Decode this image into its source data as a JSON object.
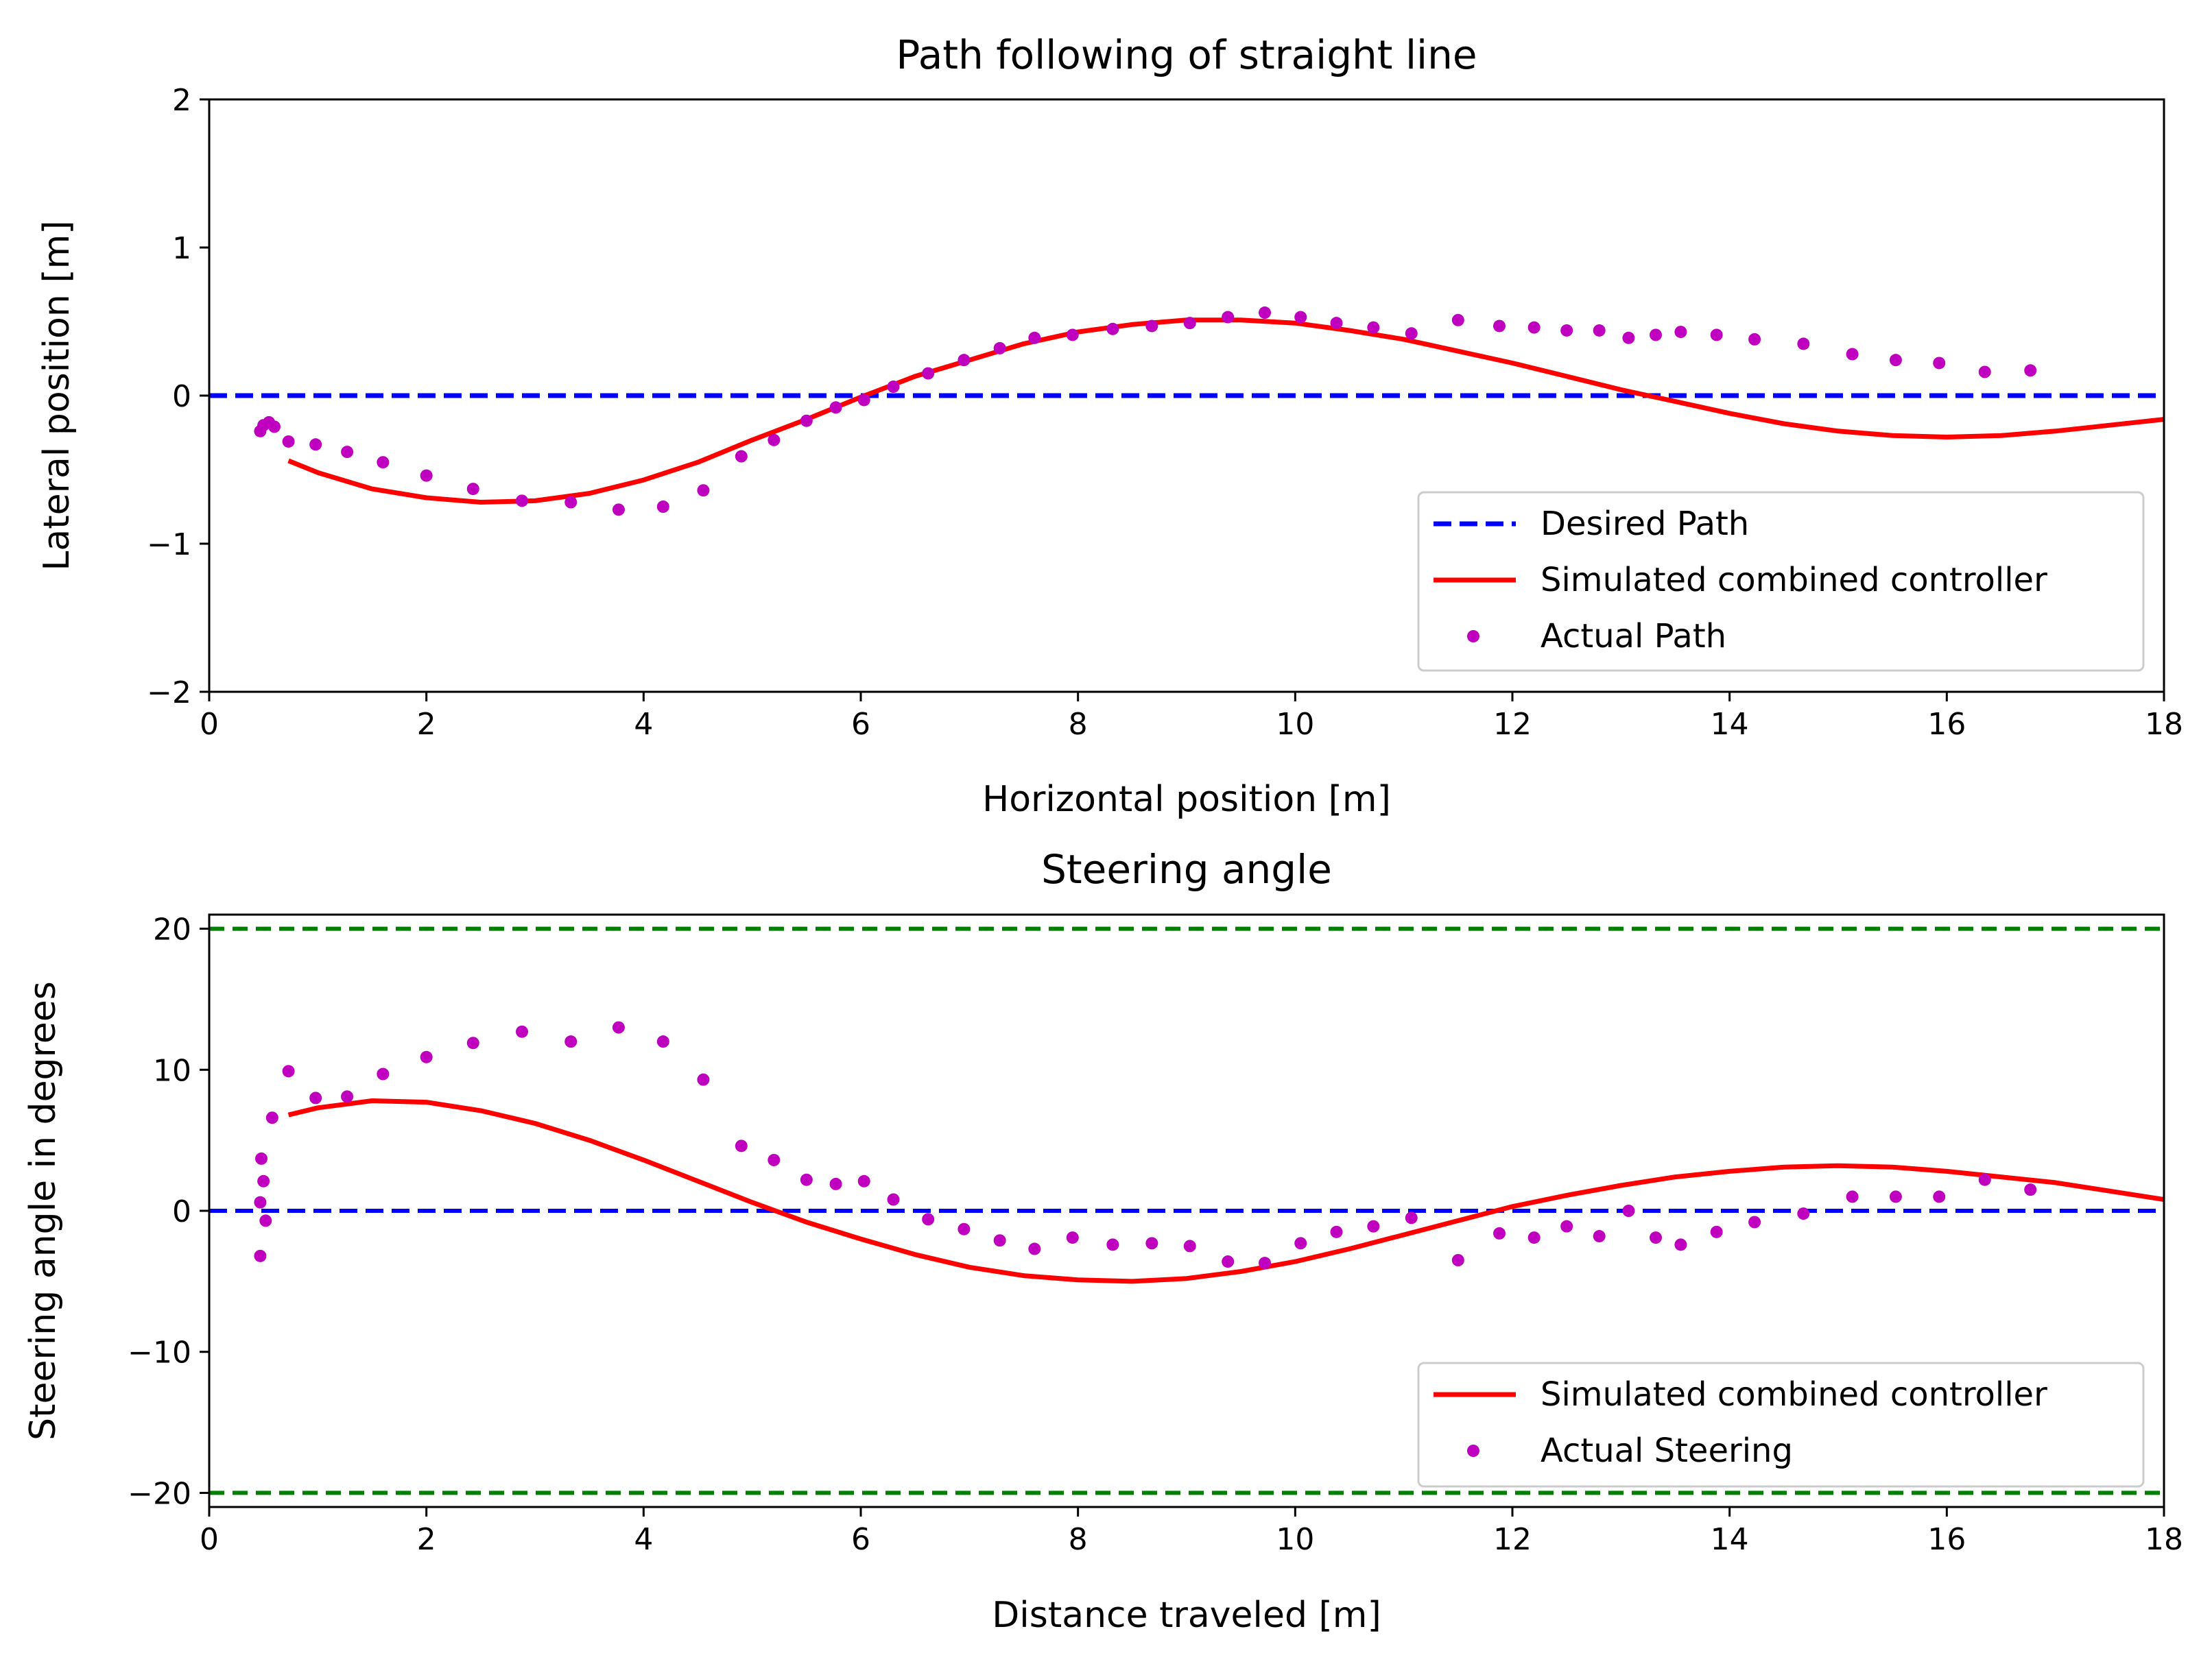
{
  "chart_data": [
    {
      "type": "line",
      "title": "Path following of straight line",
      "xlabel": "Horizontal position [m]",
      "ylabel": "Lateral position [m]",
      "xlim": [
        0,
        18
      ],
      "ylim": [
        -2,
        2
      ],
      "xticks": [
        0,
        2,
        4,
        6,
        8,
        10,
        12,
        14,
        16,
        18
      ],
      "yticks": [
        -2,
        -1,
        0,
        1,
        2
      ],
      "ytick_labels": [
        "−2",
        "−1",
        "0",
        "1",
        "2"
      ],
      "legend_position": "lower right",
      "series": [
        {
          "name": "Desired Path",
          "style": "dashed",
          "color": "#0000ff",
          "x": [
            0,
            18
          ],
          "y": [
            0,
            0
          ]
        },
        {
          "name": "Simulated combined controller",
          "style": "solid",
          "color": "#ff0000",
          "x": [
            0.73,
            1.0,
            1.5,
            2.0,
            2.5,
            3.0,
            3.5,
            4.0,
            4.5,
            5.0,
            5.5,
            6.0,
            6.5,
            7.0,
            7.5,
            8.0,
            8.5,
            9.0,
            9.5,
            10.0,
            10.5,
            11.0,
            11.5,
            12.0,
            12.5,
            13.0,
            13.5,
            14.0,
            14.5,
            15.0,
            15.5,
            16.0,
            16.5,
            17.0,
            17.5,
            18.0
          ],
          "y": [
            -0.44,
            -0.52,
            -0.63,
            -0.69,
            -0.72,
            -0.71,
            -0.66,
            -0.57,
            -0.45,
            -0.3,
            -0.16,
            -0.01,
            0.13,
            0.24,
            0.35,
            0.43,
            0.48,
            0.51,
            0.51,
            0.49,
            0.44,
            0.38,
            0.3,
            0.22,
            0.13,
            0.04,
            -0.04,
            -0.12,
            -0.19,
            -0.24,
            -0.27,
            -0.28,
            -0.27,
            -0.24,
            -0.2,
            -0.16
          ]
        },
        {
          "name": "Actual Path",
          "style": "markers",
          "color": "#bf00bf",
          "x": [
            0.47,
            0.5,
            0.55,
            0.6,
            0.73,
            0.98,
            1.27,
            1.6,
            2.0,
            2.43,
            2.88,
            3.33,
            3.77,
            4.18,
            4.55,
            4.9,
            5.2,
            5.5,
            5.77,
            6.03,
            6.3,
            6.62,
            6.95,
            7.28,
            7.6,
            7.95,
            8.32,
            8.68,
            9.03,
            9.38,
            9.72,
            10.05,
            10.38,
            10.72,
            11.07,
            11.5,
            11.88,
            12.2,
            12.5,
            12.8,
            13.07,
            13.32,
            13.55,
            13.88,
            14.23,
            14.68,
            15.13,
            15.53,
            15.93,
            16.35,
            16.77
          ],
          "y": [
            -0.24,
            -0.2,
            -0.18,
            -0.21,
            -0.31,
            -0.33,
            -0.38,
            -0.45,
            -0.54,
            -0.63,
            -0.71,
            -0.72,
            -0.77,
            -0.75,
            -0.64,
            -0.41,
            -0.3,
            -0.17,
            -0.08,
            -0.03,
            0.06,
            0.15,
            0.24,
            0.32,
            0.39,
            0.41,
            0.45,
            0.47,
            0.49,
            0.53,
            0.56,
            0.53,
            0.49,
            0.46,
            0.42,
            0.51,
            0.47,
            0.46,
            0.44,
            0.44,
            0.39,
            0.41,
            0.43,
            0.41,
            0.38,
            0.35,
            0.28,
            0.24,
            0.22,
            0.16,
            0.17
          ]
        }
      ]
    },
    {
      "type": "line",
      "title": "Steering angle",
      "xlabel": "Distance traveled [m]",
      "ylabel": "Steering angle in degrees",
      "xlim": [
        0,
        18
      ],
      "ylim": [
        -21,
        21
      ],
      "xticks": [
        0,
        2,
        4,
        6,
        8,
        10,
        12,
        14,
        16,
        18
      ],
      "yticks": [
        -20,
        -10,
        0,
        10,
        20
      ],
      "ytick_labels": [
        "−20",
        "−10",
        "0",
        "10",
        "20"
      ],
      "legend_position": "lower right",
      "reference_lines": [
        {
          "y": 20,
          "style": "dashed",
          "color": "#007f00"
        },
        {
          "y": -20,
          "style": "dashed",
          "color": "#007f00"
        },
        {
          "y": 0,
          "style": "dashed",
          "color": "#0000ff"
        }
      ],
      "series": [
        {
          "name": "Simulated combined controller",
          "style": "solid",
          "color": "#ff0000",
          "x": [
            0.73,
            1.0,
            1.5,
            2.0,
            2.5,
            3.0,
            3.5,
            4.0,
            4.5,
            5.0,
            5.5,
            6.0,
            6.5,
            7.0,
            7.5,
            8.0,
            8.5,
            9.0,
            9.5,
            10.0,
            10.5,
            11.0,
            11.5,
            12.0,
            12.5,
            13.0,
            13.5,
            14.0,
            14.5,
            15.0,
            15.5,
            16.0,
            16.5,
            17.0,
            17.5,
            18.0
          ],
          "y": [
            6.8,
            7.3,
            7.8,
            7.7,
            7.1,
            6.2,
            5.0,
            3.6,
            2.1,
            0.6,
            -0.8,
            -2.0,
            -3.1,
            -4.0,
            -4.6,
            -4.9,
            -5.0,
            -4.8,
            -4.3,
            -3.6,
            -2.7,
            -1.7,
            -0.7,
            0.3,
            1.1,
            1.8,
            2.4,
            2.8,
            3.1,
            3.2,
            3.1,
            2.8,
            2.4,
            2.0,
            1.4,
            0.8
          ]
        },
        {
          "name": "Actual Steering",
          "style": "markers",
          "color": "#bf00bf",
          "x": [
            0.47,
            0.47,
            0.48,
            0.5,
            0.52,
            0.58,
            0.73,
            0.98,
            1.27,
            1.6,
            2.0,
            2.43,
            2.88,
            3.33,
            3.77,
            4.18,
            4.55,
            4.9,
            5.2,
            5.5,
            5.77,
            6.03,
            6.3,
            6.62,
            6.95,
            7.28,
            7.6,
            7.95,
            8.32,
            8.68,
            9.03,
            9.38,
            9.72,
            10.05,
            10.38,
            10.72,
            11.07,
            11.5,
            11.88,
            12.2,
            12.5,
            12.8,
            13.07,
            13.32,
            13.55,
            13.88,
            14.23,
            14.68,
            15.13,
            15.53,
            15.93,
            16.35,
            16.77
          ],
          "y": [
            -3.2,
            0.6,
            3.7,
            2.1,
            -0.7,
            6.6,
            9.9,
            8.0,
            8.1,
            9.7,
            10.9,
            11.9,
            12.7,
            12.0,
            13.0,
            12.0,
            9.3,
            4.6,
            3.6,
            2.2,
            1.9,
            2.1,
            0.8,
            -0.6,
            -1.3,
            -2.1,
            -2.7,
            -1.9,
            -2.4,
            -2.3,
            -2.5,
            -3.6,
            -3.7,
            -2.3,
            -1.5,
            -1.1,
            -0.5,
            -3.5,
            -1.6,
            -1.9,
            -1.1,
            -1.8,
            0.0,
            -1.9,
            -2.4,
            -1.5,
            -0.8,
            -0.2,
            1.0,
            1.0,
            1.0,
            2.2,
            1.5
          ]
        }
      ]
    }
  ]
}
